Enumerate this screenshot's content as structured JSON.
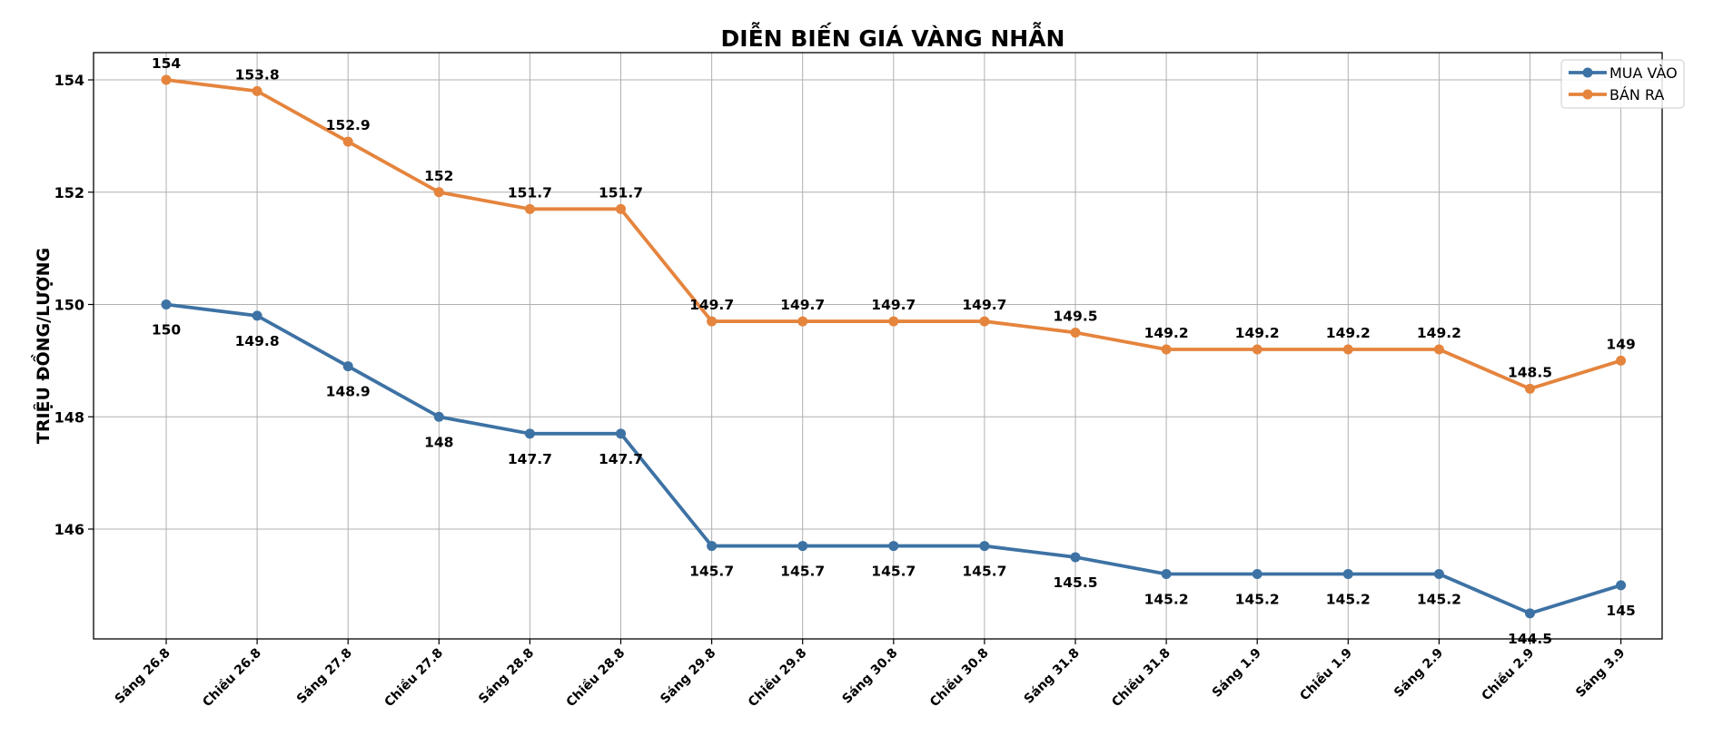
{
  "chart_data": {
    "type": "line",
    "title": "DIỄN BIẾN GIÁ VÀNG NHẪN",
    "xlabel": "",
    "ylabel": "TRIỆU ĐỒNG/LƯỢNG",
    "ylim": [
      143,
      154.5
    ],
    "yticks": [
      146,
      148,
      150,
      152,
      154
    ],
    "grid": true,
    "legend": "top-right",
    "categories": [
      "Sáng 26.8",
      "Chiều 26.8",
      "Sáng 27.8",
      "Chiều 27.8",
      "Sáng 28.8",
      "Chiều 28.8",
      "Sáng 29.8",
      "Chiều 29.8",
      "Sáng 30.8",
      "Chiều 30.8",
      "Sáng 31.8",
      "Chiều 31.8",
      "Sáng 1.9",
      "Chiều 1.9",
      "Sáng 2.9",
      "Chiều 2.9",
      "Sáng 3.9"
    ],
    "series": [
      {
        "name": "MUA VÀO",
        "color": "#3d72a4",
        "values": [
          150,
          149.8,
          148.9,
          148,
          147.7,
          147.7,
          145.7,
          145.7,
          145.7,
          145.7,
          145.5,
          145.2,
          145.2,
          145.2,
          145.2,
          144.5,
          145
        ]
      },
      {
        "name": "BÁN RA",
        "color": "#e5843d",
        "values": [
          154,
          153.8,
          152.9,
          152,
          151.7,
          151.7,
          149.7,
          149.7,
          149.7,
          149.7,
          149.5,
          149.2,
          149.2,
          149.2,
          149.2,
          148.5,
          149
        ]
      }
    ]
  }
}
